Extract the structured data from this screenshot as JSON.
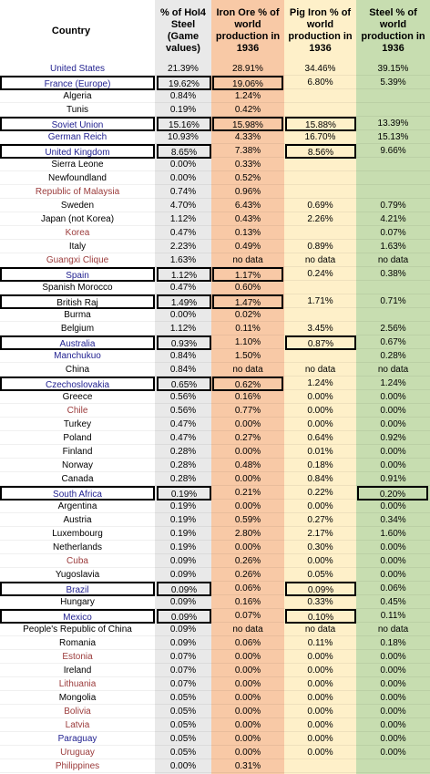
{
  "headers": {
    "country": "Country",
    "hoi4": "% of HoI4\nSteel\n(Game\nvalues)",
    "iron_ore": "Iron Ore % of\nworld\nproduction in\n1936",
    "pig_iron": "Pig Iron % of\nworld\nproduction in\n1936",
    "steel": "Steel % of\nworld\nproduction in\n1936"
  },
  "colors": {
    "country_major": "#1f1f8f",
    "country_minor": "#9b3b3b",
    "col_hoi4": "#e9e9e9",
    "col_iron_ore": "#f8c9a6",
    "col_pig_iron": "#fef0c9",
    "col_steel": "#c7ddb0"
  },
  "rows": [
    {
      "country": "United States",
      "style": "major",
      "hoi4": "21.39%",
      "ore": "28.91%",
      "pig": "34.46%",
      "steel": "39.15%",
      "box": []
    },
    {
      "country": "France (Europe)",
      "style": "major",
      "hoi4": "19.62%",
      "ore": "19.06%",
      "pig": "6.80%",
      "steel": "5.39%",
      "box": [
        "country",
        "hoi4",
        "ore"
      ]
    },
    {
      "country": "Algeria",
      "style": "plain",
      "hoi4": "0.84%",
      "ore": "1.24%",
      "pig": "",
      "steel": "",
      "box": []
    },
    {
      "country": "Tunis",
      "style": "plain",
      "hoi4": "0.19%",
      "ore": "0.42%",
      "pig": "",
      "steel": "",
      "box": []
    },
    {
      "country": "Soviet Union",
      "style": "major",
      "hoi4": "15.16%",
      "ore": "15.98%",
      "pig": "15.88%",
      "steel": "13.39%",
      "box": [
        "country",
        "hoi4",
        "ore",
        "pig"
      ]
    },
    {
      "country": "German Reich",
      "style": "major",
      "hoi4": "10.93%",
      "ore": "4.33%",
      "pig": "16.70%",
      "steel": "15.13%",
      "box": []
    },
    {
      "country": "United Kingdom",
      "style": "major",
      "hoi4": "8.65%",
      "ore": "7.38%",
      "pig": "8.56%",
      "steel": "9.66%",
      "box": [
        "country",
        "hoi4",
        "pig"
      ]
    },
    {
      "country": "Sierra Leone",
      "style": "plain",
      "hoi4": "0.00%",
      "ore": "0.33%",
      "pig": "",
      "steel": "",
      "box": []
    },
    {
      "country": "Newfoundland",
      "style": "plain",
      "hoi4": "0.00%",
      "ore": "0.52%",
      "pig": "",
      "steel": "",
      "box": []
    },
    {
      "country": "Republic of Malaysia",
      "style": "minor",
      "hoi4": "0.74%",
      "ore": "0.96%",
      "pig": "",
      "steel": "",
      "box": []
    },
    {
      "country": "Sweden",
      "style": "plain",
      "hoi4": "4.70%",
      "ore": "6.43%",
      "pig": "0.69%",
      "steel": "0.79%",
      "box": []
    },
    {
      "country": "Japan (not Korea)",
      "style": "plain",
      "hoi4": "1.12%",
      "ore": "0.43%",
      "pig": "2.26%",
      "steel": "4.21%",
      "box": []
    },
    {
      "country": "Korea",
      "style": "minor",
      "hoi4": "0.47%",
      "ore": "0.13%",
      "pig": "",
      "steel": "0.07%",
      "box": []
    },
    {
      "country": "Italy",
      "style": "plain",
      "hoi4": "2.23%",
      "ore": "0.49%",
      "pig": "0.89%",
      "steel": "1.63%",
      "box": []
    },
    {
      "country": "Guangxi Clique",
      "style": "minor",
      "hoi4": "1.63%",
      "ore": "no data",
      "pig": "no data",
      "steel": "no data",
      "box": []
    },
    {
      "country": "Spain",
      "style": "major",
      "hoi4": "1.12%",
      "ore": "1.17%",
      "pig": "0.24%",
      "steel": "0.38%",
      "box": [
        "country",
        "hoi4",
        "ore"
      ]
    },
    {
      "country": "Spanish Morocco",
      "style": "plain",
      "hoi4": "0.47%",
      "ore": "0.60%",
      "pig": "",
      "steel": "",
      "box": []
    },
    {
      "country": "British Raj",
      "style": "plain",
      "hoi4": "1.49%",
      "ore": "1.47%",
      "pig": "1.71%",
      "steel": "0.71%",
      "box": [
        "country",
        "hoi4",
        "ore"
      ]
    },
    {
      "country": "Burma",
      "style": "plain",
      "hoi4": "0.00%",
      "ore": "0.02%",
      "pig": "",
      "steel": "",
      "box": []
    },
    {
      "country": "Belgium",
      "style": "plain",
      "hoi4": "1.12%",
      "ore": "0.11%",
      "pig": "3.45%",
      "steel": "2.56%",
      "box": []
    },
    {
      "country": "Australia",
      "style": "major",
      "hoi4": "0.93%",
      "ore": "1.10%",
      "pig": "0.87%",
      "steel": "0.67%",
      "box": [
        "country",
        "hoi4",
        "pig"
      ]
    },
    {
      "country": "Manchukuo",
      "style": "major",
      "hoi4": "0.84%",
      "ore": "1.50%",
      "pig": "",
      "steel": "0.28%",
      "box": []
    },
    {
      "country": "China",
      "style": "plain",
      "hoi4": "0.84%",
      "ore": "no data",
      "pig": "no data",
      "steel": "no data",
      "box": []
    },
    {
      "country": "Czechoslovakia",
      "style": "major",
      "hoi4": "0.65%",
      "ore": "0.62%",
      "pig": "1.24%",
      "steel": "1.24%",
      "box": [
        "country",
        "hoi4",
        "ore"
      ]
    },
    {
      "country": "Greece",
      "style": "plain",
      "hoi4": "0.56%",
      "ore": "0.16%",
      "pig": "0.00%",
      "steel": "0.00%",
      "box": []
    },
    {
      "country": "Chile",
      "style": "minor",
      "hoi4": "0.56%",
      "ore": "0.77%",
      "pig": "0.00%",
      "steel": "0.00%",
      "box": []
    },
    {
      "country": "Turkey",
      "style": "plain",
      "hoi4": "0.47%",
      "ore": "0.00%",
      "pig": "0.00%",
      "steel": "0.00%",
      "box": []
    },
    {
      "country": "Poland",
      "style": "plain",
      "hoi4": "0.47%",
      "ore": "0.27%",
      "pig": "0.64%",
      "steel": "0.92%",
      "box": []
    },
    {
      "country": "Finland",
      "style": "plain",
      "hoi4": "0.28%",
      "ore": "0.00%",
      "pig": "0.01%",
      "steel": "0.00%",
      "box": []
    },
    {
      "country": "Norway",
      "style": "plain",
      "hoi4": "0.28%",
      "ore": "0.48%",
      "pig": "0.18%",
      "steel": "0.00%",
      "box": []
    },
    {
      "country": "Canada",
      "style": "plain",
      "hoi4": "0.28%",
      "ore": "0.00%",
      "pig": "0.84%",
      "steel": "0.91%",
      "box": []
    },
    {
      "country": "South Africa",
      "style": "major",
      "hoi4": "0.19%",
      "ore": "0.21%",
      "pig": "0.22%",
      "steel": "0.20%",
      "box": [
        "country",
        "hoi4",
        "steel"
      ]
    },
    {
      "country": "Argentina",
      "style": "plain",
      "hoi4": "0.19%",
      "ore": "0.00%",
      "pig": "0.00%",
      "steel": "0.00%",
      "box": []
    },
    {
      "country": "Austria",
      "style": "plain",
      "hoi4": "0.19%",
      "ore": "0.59%",
      "pig": "0.27%",
      "steel": "0.34%",
      "box": []
    },
    {
      "country": "Luxembourg",
      "style": "plain",
      "hoi4": "0.19%",
      "ore": "2.80%",
      "pig": "2.17%",
      "steel": "1.60%",
      "box": []
    },
    {
      "country": "Netherlands",
      "style": "plain",
      "hoi4": "0.19%",
      "ore": "0.00%",
      "pig": "0.30%",
      "steel": "0.00%",
      "box": []
    },
    {
      "country": "Cuba",
      "style": "minor",
      "hoi4": "0.09%",
      "ore": "0.26%",
      "pig": "0.00%",
      "steel": "0.00%",
      "box": []
    },
    {
      "country": "Yugoslavia",
      "style": "plain",
      "hoi4": "0.09%",
      "ore": "0.26%",
      "pig": "0.05%",
      "steel": "0.00%",
      "box": []
    },
    {
      "country": "Brazil",
      "style": "major",
      "hoi4": "0.09%",
      "ore": "0.06%",
      "pig": "0.09%",
      "steel": "0.06%",
      "box": [
        "country",
        "hoi4",
        "pig"
      ]
    },
    {
      "country": "Hungary",
      "style": "plain",
      "hoi4": "0.09%",
      "ore": "0.16%",
      "pig": "0.33%",
      "steel": "0.45%",
      "box": []
    },
    {
      "country": "Mexico",
      "style": "major",
      "hoi4": "0.09%",
      "ore": "0.07%",
      "pig": "0.10%",
      "steel": "0.11%",
      "box": [
        "country",
        "hoi4",
        "pig"
      ]
    },
    {
      "country": "People's Republic of China",
      "style": "plain",
      "hoi4": "0.09%",
      "ore": "no data",
      "pig": "no data",
      "steel": "no data",
      "box": []
    },
    {
      "country": "Romania",
      "style": "plain",
      "hoi4": "0.09%",
      "ore": "0.06%",
      "pig": "0.11%",
      "steel": "0.18%",
      "box": []
    },
    {
      "country": "Estonia",
      "style": "minor",
      "hoi4": "0.07%",
      "ore": "0.00%",
      "pig": "0.00%",
      "steel": "0.00%",
      "box": []
    },
    {
      "country": "Ireland",
      "style": "plain",
      "hoi4": "0.07%",
      "ore": "0.00%",
      "pig": "0.00%",
      "steel": "0.00%",
      "box": []
    },
    {
      "country": "Lithuania",
      "style": "minor",
      "hoi4": "0.07%",
      "ore": "0.00%",
      "pig": "0.00%",
      "steel": "0.00%",
      "box": []
    },
    {
      "country": "Mongolia",
      "style": "plain",
      "hoi4": "0.05%",
      "ore": "0.00%",
      "pig": "0.00%",
      "steel": "0.00%",
      "box": []
    },
    {
      "country": "Bolivia",
      "style": "minor",
      "hoi4": "0.05%",
      "ore": "0.00%",
      "pig": "0.00%",
      "steel": "0.00%",
      "box": []
    },
    {
      "country": "Latvia",
      "style": "minor",
      "hoi4": "0.05%",
      "ore": "0.00%",
      "pig": "0.00%",
      "steel": "0.00%",
      "box": []
    },
    {
      "country": "Paraguay",
      "style": "major",
      "hoi4": "0.05%",
      "ore": "0.00%",
      "pig": "0.00%",
      "steel": "0.00%",
      "box": []
    },
    {
      "country": "Uruguay",
      "style": "minor",
      "hoi4": "0.05%",
      "ore": "0.00%",
      "pig": "0.00%",
      "steel": "0.00%",
      "box": []
    },
    {
      "country": "Philippines",
      "style": "minor",
      "hoi4": "0.00%",
      "ore": "0.31%",
      "pig": "",
      "steel": "",
      "box": []
    }
  ]
}
